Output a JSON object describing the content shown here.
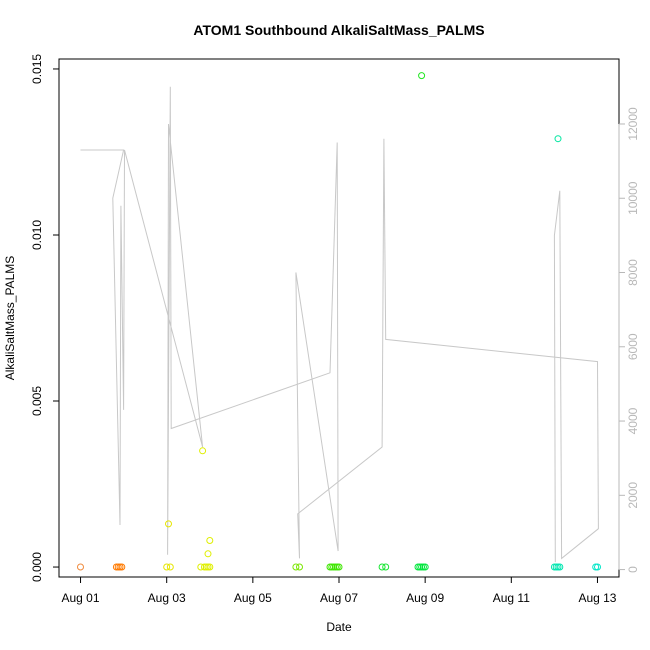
{
  "chart_data": {
    "type": "scatter",
    "title": "ATOM1 Southbound AlkaliSaltMass_PALMS",
    "xlabel": "Date",
    "ylabel": "AlkaliSaltMass_PALMS",
    "xlim": [
      "2016-07-31T12:00",
      "2016-08-13T12:00"
    ],
    "ylim": [
      -0.0003,
      0.0153
    ],
    "x_ticks": [
      {
        "date": "2016-08-01",
        "label": "Aug 01"
      },
      {
        "date": "2016-08-03",
        "label": "Aug 03"
      },
      {
        "date": "2016-08-05",
        "label": "Aug 05"
      },
      {
        "date": "2016-08-07",
        "label": "Aug 07"
      },
      {
        "date": "2016-08-09",
        "label": "Aug 09"
      },
      {
        "date": "2016-08-11",
        "label": "Aug 11"
      },
      {
        "date": "2016-08-13",
        "label": "Aug 13"
      }
    ],
    "y_ticks": [
      {
        "value": 0.0,
        "label": "0.000"
      },
      {
        "value": 0.005,
        "label": "0.005"
      },
      {
        "value": 0.01,
        "label": "0.010"
      },
      {
        "value": 0.015,
        "label": "0.015"
      }
    ],
    "y2_ticks": [
      {
        "value": 0,
        "label": "0"
      },
      {
        "value": 2000,
        "label": "2000"
      },
      {
        "value": 4000,
        "label": "4000"
      },
      {
        "value": 6000,
        "label": "6000"
      },
      {
        "value": 8000,
        "label": "8000"
      },
      {
        "value": 10000,
        "label": "10000"
      },
      {
        "value": 12000,
        "label": "12000"
      }
    ],
    "y2lim": [
      -200,
      13750
    ],
    "points": [
      {
        "x": "2016-08-01T00:00",
        "y": 0.0,
        "color": "#f08a3c"
      },
      {
        "x": "2016-08-01T20:00",
        "y": 0.0,
        "color": "#ff7a00"
      },
      {
        "x": "2016-08-01T21:00",
        "y": 0.0,
        "color": "#ff7a00"
      },
      {
        "x": "2016-08-01T22:00",
        "y": 0.0,
        "color": "#ff7a00"
      },
      {
        "x": "2016-08-01T23:00",
        "y": 0.0,
        "color": "#ff7a00"
      },
      {
        "x": "2016-08-03T00:00",
        "y": 0.0,
        "color": "#e6e600"
      },
      {
        "x": "2016-08-03T02:00",
        "y": 0.0,
        "color": "#e6e600"
      },
      {
        "x": "2016-08-03T01:00",
        "y": 0.0013,
        "color": "#e6e600"
      },
      {
        "x": "2016-08-03T20:00",
        "y": 0.0035,
        "color": "#dfef00"
      },
      {
        "x": "2016-08-03T19:00",
        "y": 0.0,
        "color": "#dfef00"
      },
      {
        "x": "2016-08-03T21:00",
        "y": 0.0,
        "color": "#dfef00"
      },
      {
        "x": "2016-08-03T22:00",
        "y": 0.0,
        "color": "#dfef00"
      },
      {
        "x": "2016-08-03T23:00",
        "y": 0.0,
        "color": "#dfef00"
      },
      {
        "x": "2016-08-04T00:00",
        "y": 0.0,
        "color": "#dfef00"
      },
      {
        "x": "2016-08-03T23:00",
        "y": 0.0004,
        "color": "#dfef00"
      },
      {
        "x": "2016-08-04T00:00",
        "y": 0.0008,
        "color": "#dfef00"
      },
      {
        "x": "2016-08-06T00:00",
        "y": 0.0,
        "color": "#7ae600"
      },
      {
        "x": "2016-08-06T02:00",
        "y": 0.0,
        "color": "#7ae600"
      },
      {
        "x": "2016-08-06T19:00",
        "y": 0.0,
        "color": "#3ee600"
      },
      {
        "x": "2016-08-06T20:00",
        "y": 0.0,
        "color": "#3ee600"
      },
      {
        "x": "2016-08-06T21:00",
        "y": 0.0,
        "color": "#3ee600"
      },
      {
        "x": "2016-08-06T22:00",
        "y": 0.0,
        "color": "#3ee600"
      },
      {
        "x": "2016-08-06T23:00",
        "y": 0.0,
        "color": "#3ee600"
      },
      {
        "x": "2016-08-07T00:00",
        "y": 0.0,
        "color": "#3ee600"
      },
      {
        "x": "2016-08-08T00:00",
        "y": 0.0,
        "color": "#18e632"
      },
      {
        "x": "2016-08-08T02:00",
        "y": 0.0,
        "color": "#18e632"
      },
      {
        "x": "2016-08-08T20:00",
        "y": 0.0,
        "color": "#00e63c"
      },
      {
        "x": "2016-08-08T21:00",
        "y": 0.0,
        "color": "#00e63c"
      },
      {
        "x": "2016-08-08T22:00",
        "y": 0.0,
        "color": "#00e63c"
      },
      {
        "x": "2016-08-08T23:00",
        "y": 0.0,
        "color": "#00e63c"
      },
      {
        "x": "2016-08-09T00:00",
        "y": 0.0,
        "color": "#00e63c"
      },
      {
        "x": "2016-08-08T22:00",
        "y": 0.0148,
        "color": "#22e622"
      },
      {
        "x": "2016-08-12T00:00",
        "y": 0.0,
        "color": "#00e6b0"
      },
      {
        "x": "2016-08-12T01:00",
        "y": 0.0,
        "color": "#00e6b0"
      },
      {
        "x": "2016-08-12T02:00",
        "y": 0.0,
        "color": "#00e6b0"
      },
      {
        "x": "2016-08-12T03:00",
        "y": 0.0,
        "color": "#00e6b0"
      },
      {
        "x": "2016-08-12T02:00",
        "y": 0.0129,
        "color": "#00e6a0"
      },
      {
        "x": "2016-08-12T23:00",
        "y": 0.0,
        "color": "#00e6c8"
      },
      {
        "x": "2016-08-13T00:00",
        "y": 0.0,
        "color": "#00e6c8"
      }
    ],
    "secondary_line": {
      "color": "#c8c8c8",
      "axis": "right",
      "points": [
        {
          "x": "2016-08-01T00:00",
          "y2": 11300
        },
        {
          "x": "2016-08-02T00:00",
          "y2": 11300
        },
        {
          "x": "2016-08-01T18:00",
          "y2": 10000
        },
        {
          "x": "2016-08-01T22:00",
          "y2": 1200
        },
        {
          "x": "2016-08-01T22:30",
          "y2": 9800
        },
        {
          "x": "2016-08-02T00:00",
          "y2": 4300
        },
        {
          "x": "2016-08-02T00:30",
          "y2": 11300
        },
        {
          "x": "2016-08-03T20:00",
          "y2": 3300
        },
        {
          "x": "2016-08-03T01:00",
          "y2": 12000
        },
        {
          "x": "2016-08-03T00:30",
          "y2": 400
        },
        {
          "x": "2016-08-03T02:00",
          "y2": 13000
        },
        {
          "x": "2016-08-03T02:30",
          "y2": 3800
        },
        {
          "x": "2016-08-06T19:00",
          "y2": 5300
        },
        {
          "x": "2016-08-06T23:00",
          "y2": 11500
        },
        {
          "x": "2016-08-06T23:30",
          "y2": 500
        },
        {
          "x": "2016-08-06T00:00",
          "y2": 8000
        },
        {
          "x": "2016-08-06T02:00",
          "y2": 300
        },
        {
          "x": "2016-08-06T01:00",
          "y2": 1500
        },
        {
          "x": "2016-08-08T00:00",
          "y2": 3300
        },
        {
          "x": "2016-08-08T01:00",
          "y2": 11600
        },
        {
          "x": "2016-08-08T02:00",
          "y2": 6200
        },
        {
          "x": "2016-08-13T00:00",
          "y2": 5600
        },
        {
          "x": "2016-08-13T00:30",
          "y2": 1100
        },
        {
          "x": "2016-08-12T04:00",
          "y2": 300
        },
        {
          "x": "2016-08-12T03:00",
          "y2": 10200
        },
        {
          "x": "2016-08-12T00:00",
          "y2": 9000
        },
        {
          "x": "2016-08-12T00:30",
          "y2": 200
        }
      ]
    },
    "grid": false,
    "legend": "none"
  }
}
